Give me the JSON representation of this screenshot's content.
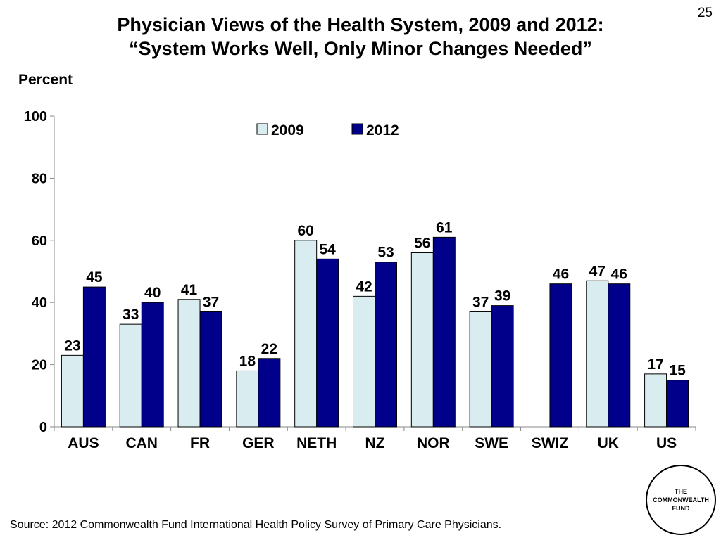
{
  "slide_number": "25",
  "title_line1": "Physician Views of the Health System, 2009 and 2012:",
  "title_line2": "“System Works Well, Only Minor Changes Needed”",
  "source": "Source: 2012 Commonwealth Fund International Health Policy Survey of Primary Care Physicians.",
  "logo": {
    "line1": "THE",
    "line2": "COMMONWEALTH",
    "line3": "FUND"
  },
  "colors": {
    "series_2009": "#d9ecef",
    "series_2012": "#00008b",
    "outline": "#000000"
  },
  "chart_data": {
    "type": "bar",
    "ylabel": "Percent",
    "ylim": [
      0,
      100
    ],
    "yticks": [
      0,
      20,
      40,
      60,
      80,
      100
    ],
    "grid": false,
    "legend": "top-center",
    "categories": [
      "AUS",
      "CAN",
      "FR",
      "GER",
      "NETH",
      "NZ",
      "NOR",
      "SWE",
      "SWIZ",
      "UK",
      "US"
    ],
    "series": [
      {
        "name": "2009",
        "values": [
          23,
          33,
          41,
          18,
          60,
          42,
          56,
          37,
          null,
          47,
          17
        ]
      },
      {
        "name": "2012",
        "values": [
          45,
          40,
          37,
          22,
          54,
          53,
          61,
          39,
          46,
          46,
          15
        ]
      }
    ]
  }
}
